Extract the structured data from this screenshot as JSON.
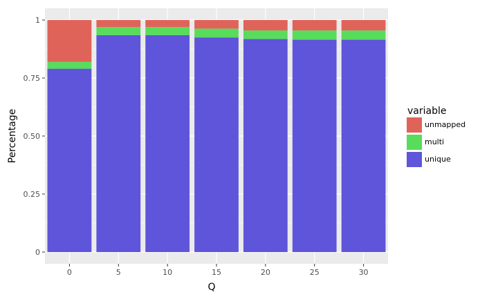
{
  "chart_data": {
    "type": "bar",
    "stacked": true,
    "categories": [
      "0",
      "5",
      "10",
      "15",
      "20",
      "25",
      "30"
    ],
    "series": [
      {
        "name": "unique",
        "color": "#5e55db",
        "values": [
          0.79,
          0.935,
          0.935,
          0.925,
          0.918,
          0.915,
          0.915
        ]
      },
      {
        "name": "multi",
        "color": "#58dc5c",
        "values": [
          0.03,
          0.035,
          0.035,
          0.038,
          0.037,
          0.04,
          0.04
        ]
      },
      {
        "name": "unmapped",
        "color": "#e0635a",
        "values": [
          0.18,
          0.03,
          0.03,
          0.037,
          0.045,
          0.045,
          0.045
        ]
      }
    ],
    "xlabel": "Q",
    "ylabel": "Percentage",
    "ylim": [
      0,
      1
    ],
    "yticks": [
      {
        "value": 0,
        "label": "0"
      },
      {
        "value": 0.25,
        "label": "0.25"
      },
      {
        "value": 0.5,
        "label": "0.50"
      },
      {
        "value": 0.75,
        "label": "0.75"
      },
      {
        "value": 1,
        "label": "1"
      }
    ],
    "legend": {
      "title": "variable",
      "placement": "right",
      "entries": [
        "unmapped",
        "multi",
        "unique"
      ]
    },
    "grid": true,
    "panel_color": "#ebebeb",
    "grid_color": "#ffffff"
  }
}
